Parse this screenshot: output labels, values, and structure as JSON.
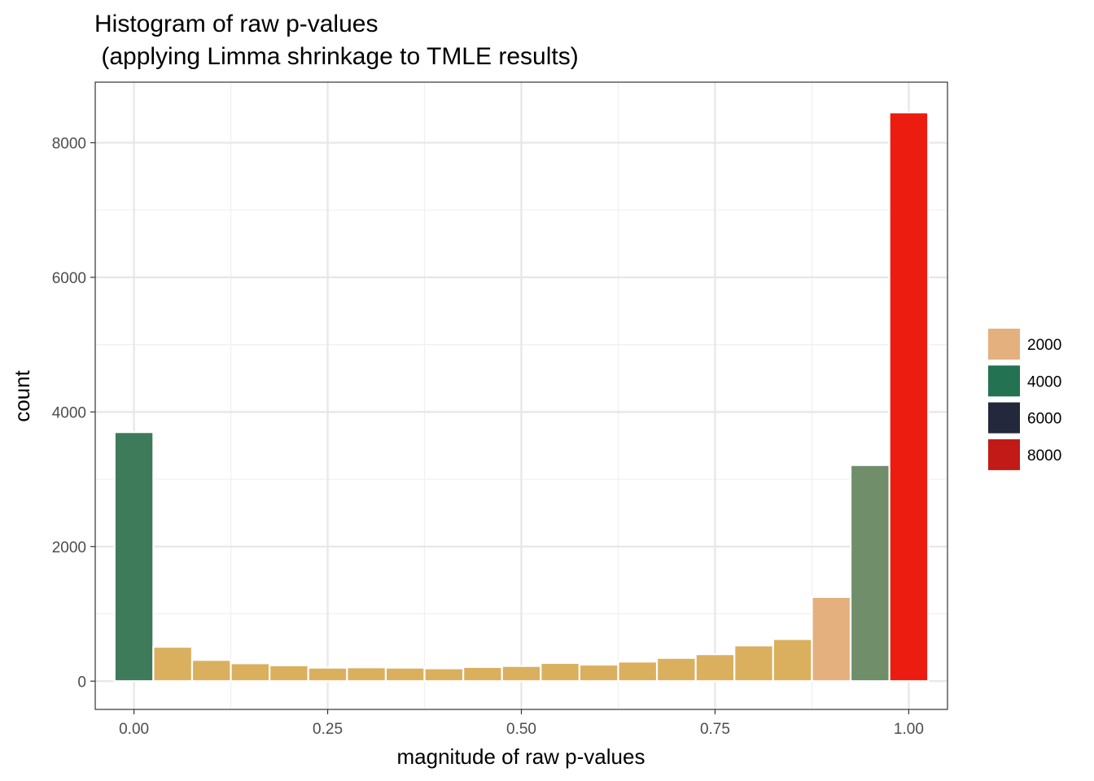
{
  "chart_data": {
    "type": "bar",
    "title_lines": [
      "Histogram of raw p-values",
      " (applying Limma shrinkage to TMLE results)"
    ],
    "xlabel": "magnitude of raw p-values",
    "ylabel": "count",
    "xlim": [
      -0.05,
      1.05
    ],
    "ylim": [
      -420,
      8900
    ],
    "x_ticks": [
      0.0,
      0.25,
      0.5,
      0.75,
      1.0
    ],
    "x_tick_labels": [
      "0.00",
      "0.25",
      "0.50",
      "0.75",
      "1.00"
    ],
    "y_ticks": [
      0,
      2000,
      4000,
      6000,
      8000
    ],
    "y_tick_labels": [
      "0",
      "2000",
      "4000",
      "6000",
      "8000"
    ],
    "bin_width": 0.05,
    "bin_centers": [
      0.0,
      0.05,
      0.1,
      0.15,
      0.2,
      0.25,
      0.3,
      0.35,
      0.4,
      0.45,
      0.5,
      0.55,
      0.6,
      0.65,
      0.7,
      0.75,
      0.8,
      0.85,
      0.9,
      0.95,
      1.0
    ],
    "values": [
      3700,
      510,
      315,
      265,
      235,
      200,
      205,
      200,
      190,
      210,
      225,
      270,
      245,
      290,
      345,
      400,
      530,
      625,
      1250,
      3210,
      8450
    ],
    "bar_colors": [
      "#3e7b5b",
      "#dab05e",
      "#dab05e",
      "#dab05e",
      "#dab05e",
      "#dab05e",
      "#dab05e",
      "#dab05e",
      "#dab05e",
      "#dab05e",
      "#dab05e",
      "#dab05e",
      "#dab05e",
      "#dab05e",
      "#dab05e",
      "#dab05e",
      "#dab05e",
      "#dab05e",
      "#e3b07e",
      "#6f8e69",
      "#ec1c11"
    ],
    "grid": true,
    "legend": {
      "position": "right",
      "entries": [
        {
          "label": "2000",
          "color": "#e3b07e"
        },
        {
          "label": "4000",
          "color": "#237252"
        },
        {
          "label": "6000",
          "color": "#23283d"
        },
        {
          "label": "8000",
          "color": "#c11a17"
        }
      ]
    }
  }
}
